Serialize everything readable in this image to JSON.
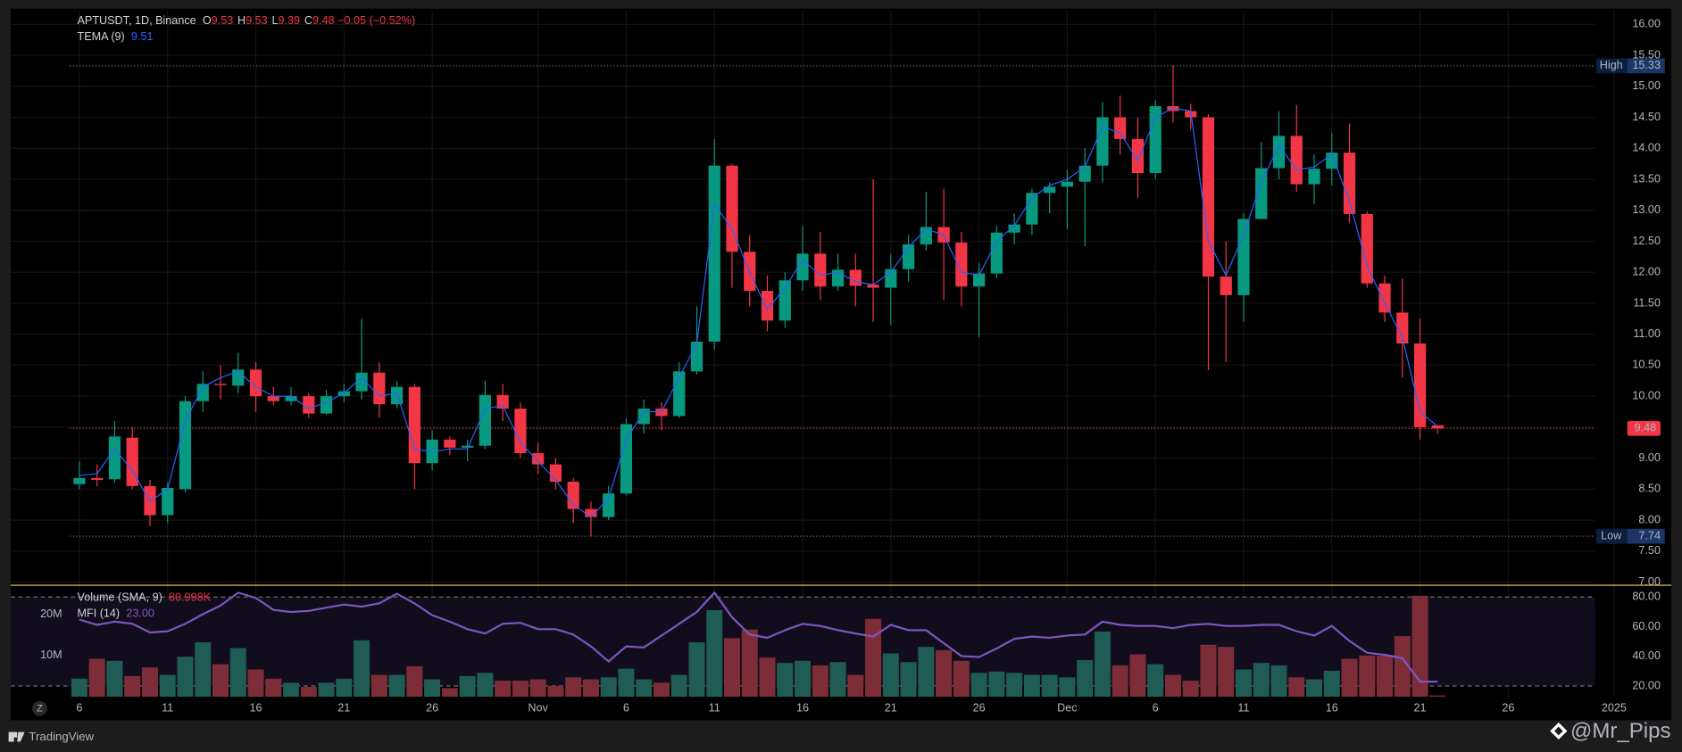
{
  "header": {
    "symbol": "APTUSDT, 1D, Binance",
    "ohlc": [
      {
        "label": "O",
        "value": "9.53"
      },
      {
        "label": "H",
        "value": "9.53"
      },
      {
        "label": "L",
        "value": "9.39"
      },
      {
        "label": "C",
        "value": "9.48"
      }
    ],
    "change": "−0.05 (−0.52%)"
  },
  "chart_data": [
    {
      "type": "candlestick",
      "up_color": "#089981",
      "down_color": "#f23645",
      "open": [
        8.58,
        8.68,
        8.66,
        9.33,
        8.55,
        8.08,
        8.5,
        9.92,
        10.2,
        10.17,
        10.43,
        10.0,
        9.92,
        10.0,
        9.72,
        10.0,
        10.08,
        10.38,
        9.87,
        10.15,
        8.92,
        9.3,
        9.17,
        9.2,
        10.02,
        9.8,
        9.08,
        8.9,
        8.62,
        8.18,
        8.05,
        8.43,
        9.55,
        9.8,
        9.68,
        10.4,
        10.88,
        13.72,
        12.33,
        11.7,
        11.22,
        11.87,
        12.3,
        11.77,
        12.04,
        11.8,
        11.75,
        12.05,
        12.45,
        12.73,
        12.48,
        11.77,
        11.98,
        12.64,
        12.77,
        13.28,
        13.38,
        13.46,
        13.72,
        14.5,
        14.15,
        13.6,
        14.68,
        14.6,
        14.5,
        11.93,
        11.63,
        12.86,
        13.68,
        14.2,
        13.42,
        13.67,
        13.93,
        12.94,
        11.82,
        11.35,
        10.85,
        9.53
      ],
      "high": [
        8.95,
        8.9,
        9.6,
        9.5,
        8.65,
        8.6,
        10.0,
        10.4,
        10.5,
        10.7,
        10.55,
        10.15,
        10.15,
        10.05,
        10.1,
        10.2,
        11.25,
        10.55,
        10.25,
        10.2,
        9.45,
        9.35,
        9.3,
        10.25,
        10.2,
        9.9,
        9.25,
        9.0,
        8.68,
        8.3,
        8.55,
        9.65,
        9.95,
        9.9,
        10.55,
        11.45,
        14.15,
        13.75,
        12.6,
        11.95,
        12.0,
        12.75,
        12.65,
        12.3,
        12.3,
        13.5,
        12.3,
        12.6,
        13.3,
        13.35,
        12.65,
        12.15,
        12.75,
        12.95,
        13.35,
        13.45,
        13.65,
        14.0,
        14.75,
        14.85,
        14.5,
        14.78,
        15.33,
        14.72,
        14.55,
        12.5,
        12.95,
        14.1,
        14.6,
        14.7,
        13.9,
        14.25,
        14.4,
        12.98,
        11.95,
        11.9,
        11.25,
        9.53
      ],
      "low": [
        8.5,
        8.55,
        8.6,
        8.5,
        7.9,
        7.95,
        8.45,
        9.75,
        9.95,
        10.05,
        9.75,
        9.85,
        9.85,
        9.65,
        9.7,
        9.9,
        9.95,
        9.65,
        9.8,
        8.5,
        8.8,
        9.05,
        8.95,
        9.15,
        9.6,
        9.0,
        8.75,
        8.5,
        7.95,
        7.74,
        8.0,
        8.4,
        9.4,
        9.45,
        9.65,
        10.35,
        10.75,
        11.75,
        11.45,
        11.05,
        11.1,
        11.7,
        11.55,
        11.7,
        11.45,
        11.2,
        11.15,
        11.85,
        12.35,
        11.55,
        11.45,
        10.95,
        11.9,
        12.45,
        12.6,
        12.95,
        12.7,
        12.42,
        13.45,
        13.9,
        13.2,
        13.5,
        14.42,
        14.3,
        10.42,
        10.55,
        11.2,
        12.85,
        13.5,
        13.3,
        13.1,
        13.4,
        12.8,
        11.75,
        11.2,
        10.3,
        9.3,
        9.39
      ],
      "close": [
        8.68,
        8.65,
        9.35,
        8.55,
        8.08,
        8.52,
        9.92,
        10.2,
        10.18,
        10.43,
        10.0,
        9.92,
        10.0,
        9.72,
        10.0,
        10.08,
        10.38,
        9.87,
        10.15,
        8.92,
        9.3,
        9.17,
        9.2,
        10.02,
        9.8,
        9.08,
        8.9,
        8.62,
        8.18,
        8.05,
        8.43,
        9.55,
        9.8,
        9.68,
        10.4,
        10.88,
        13.72,
        12.33,
        11.7,
        11.22,
        11.87,
        12.3,
        11.77,
        12.04,
        11.78,
        11.75,
        12.05,
        12.45,
        12.73,
        12.48,
        11.77,
        11.98,
        12.64,
        12.77,
        13.28,
        13.38,
        13.46,
        13.72,
        14.5,
        14.15,
        13.6,
        14.68,
        14.6,
        14.5,
        11.93,
        11.63,
        12.86,
        13.68,
        14.2,
        13.42,
        13.67,
        13.93,
        12.94,
        11.82,
        11.35,
        10.85,
        9.5,
        9.48
      ],
      "series": [
        {
          "name": "TEMA (9)",
          "color": "#2962ff",
          "value_label": "9.51",
          "values": [
            8.72,
            8.75,
            9.15,
            8.8,
            8.3,
            8.5,
            9.6,
            10.15,
            10.3,
            10.4,
            10.15,
            10.0,
            10.0,
            9.8,
            9.9,
            10.05,
            10.3,
            10.0,
            10.05,
            9.15,
            9.1,
            9.15,
            9.15,
            9.8,
            9.85,
            9.25,
            8.95,
            8.65,
            8.25,
            8.05,
            8.35,
            9.3,
            9.75,
            9.75,
            10.3,
            10.85,
            13.1,
            12.7,
            12.0,
            11.4,
            11.75,
            12.2,
            11.95,
            12.0,
            11.85,
            11.8,
            12.0,
            12.4,
            12.7,
            12.6,
            12.0,
            11.95,
            12.5,
            12.75,
            13.2,
            13.4,
            13.5,
            13.7,
            14.35,
            14.25,
            13.8,
            14.5,
            14.65,
            14.6,
            12.5,
            11.95,
            12.6,
            13.45,
            14.05,
            13.65,
            13.7,
            13.9,
            13.15,
            12.1,
            11.5,
            10.95,
            9.75,
            9.51
          ]
        }
      ],
      "xlim": [
        -0.5,
        90
      ],
      "xticks": [
        {
          "value": 0,
          "label": "6"
        },
        {
          "value": 5,
          "label": "11"
        },
        {
          "value": 10,
          "label": "16"
        },
        {
          "value": 15,
          "label": "21"
        },
        {
          "value": 20,
          "label": "26"
        },
        {
          "value": 26,
          "label": "Nov"
        },
        {
          "value": 31,
          "label": "6"
        },
        {
          "value": 36,
          "label": "11"
        },
        {
          "value": 41,
          "label": "16"
        },
        {
          "value": 46,
          "label": "21"
        },
        {
          "value": 51,
          "label": "26"
        },
        {
          "value": 56,
          "label": "Dec"
        },
        {
          "value": 61,
          "label": "6"
        },
        {
          "value": 66,
          "label": "11"
        },
        {
          "value": 71,
          "label": "16"
        },
        {
          "value": 76,
          "label": "21"
        },
        {
          "value": 81,
          "label": "26"
        },
        {
          "value": 87,
          "label": "2025"
        }
      ],
      "ylim": [
        6.95,
        16.22
      ],
      "yticks": [
        {
          "value": 16,
          "label": "16.00"
        },
        {
          "value": 15.5,
          "label": "15.50"
        },
        {
          "value": 15,
          "label": "15.00"
        },
        {
          "value": 14.5,
          "label": "14.50"
        },
        {
          "value": 14,
          "label": "14.00"
        },
        {
          "value": 13.5,
          "label": "13.50"
        },
        {
          "value": 13,
          "label": "13.00"
        },
        {
          "value": 12.5,
          "label": "12.50"
        },
        {
          "value": 12,
          "label": "12.00"
        },
        {
          "value": 11.5,
          "label": "11.50"
        },
        {
          "value": 11,
          "label": "11.00"
        },
        {
          "value": 10.5,
          "label": "10.50"
        },
        {
          "value": 10,
          "label": "10.00"
        },
        {
          "value": 9.5,
          "label": "9.50"
        },
        {
          "value": 9,
          "label": "9.00"
        },
        {
          "value": 8.5,
          "label": "8.50"
        },
        {
          "value": 8,
          "label": "8.00"
        },
        {
          "value": 7.5,
          "label": "7.50"
        },
        {
          "value": 7,
          "label": "7.00"
        }
      ],
      "high_marker": {
        "label": "High",
        "value": 15.33
      },
      "low_marker": {
        "label": "Low",
        "value": 7.74
      },
      "last_price": {
        "value": 9.48,
        "label": "9.48"
      },
      "grid": true
    },
    {
      "type": "volume",
      "series": [
        {
          "name": "Volume (SMA, 9)",
          "value_label": "80.998K",
          "up_color": "#1f5c54",
          "down_color": "#7d2d37",
          "values": [
            4400000,
            9200000,
            8700000,
            5000000,
            7100000,
            5300000,
            9700000,
            13200000,
            7900000,
            11800000,
            6600000,
            4400000,
            3400000,
            2400000,
            3400000,
            4400000,
            13700000,
            5300000,
            5300000,
            7400000,
            4200000,
            2100000,
            5000000,
            5800000,
            3900000,
            3900000,
            4200000,
            2600000,
            4700000,
            4200000,
            4700000,
            6800000,
            4200000,
            3400000,
            5300000,
            13200000,
            21000000,
            14200000,
            16300000,
            9500000,
            8200000,
            8700000,
            7600000,
            8400000,
            5300000,
            18900000,
            10500000,
            8400000,
            12100000,
            11300000,
            8700000,
            5800000,
            6100000,
            5800000,
            5300000,
            5300000,
            4700000,
            8900000,
            15800000,
            7600000,
            10300000,
            7900000,
            5300000,
            3900000,
            12600000,
            12100000,
            6600000,
            8200000,
            7600000,
            4700000,
            4200000,
            6300000,
            9200000,
            10000000,
            10000000,
            14700000,
            24500000,
            300000
          ]
        },
        {
          "name": "MFI (14)",
          "value_label": "23.00",
          "color": "#7e57c2",
          "axis": "y2",
          "values": [
            64.8,
            61.2,
            63.4,
            61.9,
            56.1,
            56.9,
            61.9,
            68.4,
            74.2,
            82.9,
            79.3,
            71.3,
            69.9,
            70.6,
            72.8,
            74.9,
            73.5,
            75.7,
            82.2,
            75.7,
            67.7,
            63.4,
            58.3,
            55.4,
            61.9,
            62.6,
            58.3,
            58.3,
            54.7,
            46.7,
            36.6,
            46.7,
            46.0,
            54.0,
            61.9,
            69.9,
            82.9,
            66.3,
            54.7,
            52.5,
            57.6,
            61.9,
            60.5,
            57.6,
            55.4,
            53.3,
            61.2,
            57.6,
            57.6,
            48.9,
            40.2,
            39.5,
            45.3,
            51.8,
            53.3,
            52.5,
            54.0,
            54.7,
            63.4,
            61.2,
            60.5,
            60.5,
            59.0,
            61.2,
            61.9,
            60.5,
            60.5,
            61.2,
            61.2,
            56.9,
            54.0,
            60.5,
            50.4,
            42.4,
            41.0,
            38.8,
            22.9,
            23.0
          ]
        }
      ],
      "ylim": [
        0,
        26800000
      ],
      "yticks": [
        {
          "value": 20000000,
          "label": "20M"
        },
        {
          "value": 10000000,
          "label": "10M"
        }
      ],
      "y2lim": [
        12.8,
        87.2
      ],
      "y2ticks": [
        {
          "value": 80,
          "label": "80.00"
        },
        {
          "value": 60,
          "label": "60.00"
        },
        {
          "value": 40,
          "label": "40.00"
        },
        {
          "value": 20,
          "label": "20.00"
        }
      ],
      "band": [
        20,
        80
      ]
    }
  ],
  "footer": {
    "button": "Z",
    "brand": "TradingView",
    "watermark": "@Mr_Pips"
  }
}
